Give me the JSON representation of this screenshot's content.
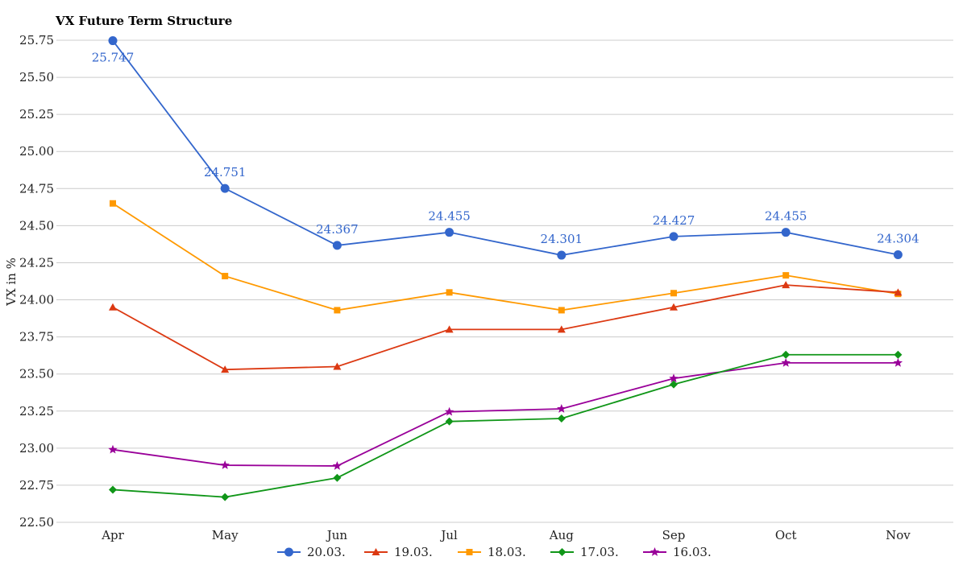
{
  "chart_data": {
    "type": "line",
    "title": "VX Future Term Structure",
    "xlabel": "",
    "ylabel": "VX in %",
    "categories": [
      "Apr",
      "May",
      "Jun",
      "Jul",
      "Aug",
      "Sep",
      "Oct",
      "Nov"
    ],
    "ylim": [
      22.5,
      25.75
    ],
    "yticks": [
      "22.50",
      "22.75",
      "23.00",
      "23.25",
      "23.50",
      "23.75",
      "24.00",
      "24.25",
      "24.50",
      "24.75",
      "25.00",
      "25.25",
      "25.50",
      "25.75"
    ],
    "grid": true,
    "legend_position": "bottom",
    "series": [
      {
        "name": "20.03.",
        "color": "#3366cc",
        "marker": "circle",
        "values": [
          25.747,
          24.751,
          24.367,
          24.455,
          24.301,
          24.427,
          24.455,
          24.304
        ],
        "labels": [
          "25.747",
          "24.751",
          "24.367",
          "24.455",
          "24.301",
          "24.427",
          "24.455",
          "24.304"
        ]
      },
      {
        "name": "19.03.",
        "color": "#dc3912",
        "marker": "triangle",
        "values": [
          23.95,
          23.53,
          23.55,
          23.8,
          23.8,
          23.95,
          24.1,
          24.05
        ]
      },
      {
        "name": "18.03.",
        "color": "#ff9900",
        "marker": "square",
        "values": [
          24.65,
          24.16,
          23.93,
          24.05,
          23.93,
          24.045,
          24.165,
          24.04
        ]
      },
      {
        "name": "17.03.",
        "color": "#109618",
        "marker": "diamond",
        "values": [
          22.72,
          22.67,
          22.8,
          23.18,
          23.2,
          23.43,
          23.63,
          23.63
        ]
      },
      {
        "name": "16.03.",
        "color": "#990099",
        "marker": "star",
        "values": [
          22.99,
          22.885,
          22.88,
          23.245,
          23.265,
          23.47,
          23.575,
          23.575
        ]
      }
    ]
  }
}
